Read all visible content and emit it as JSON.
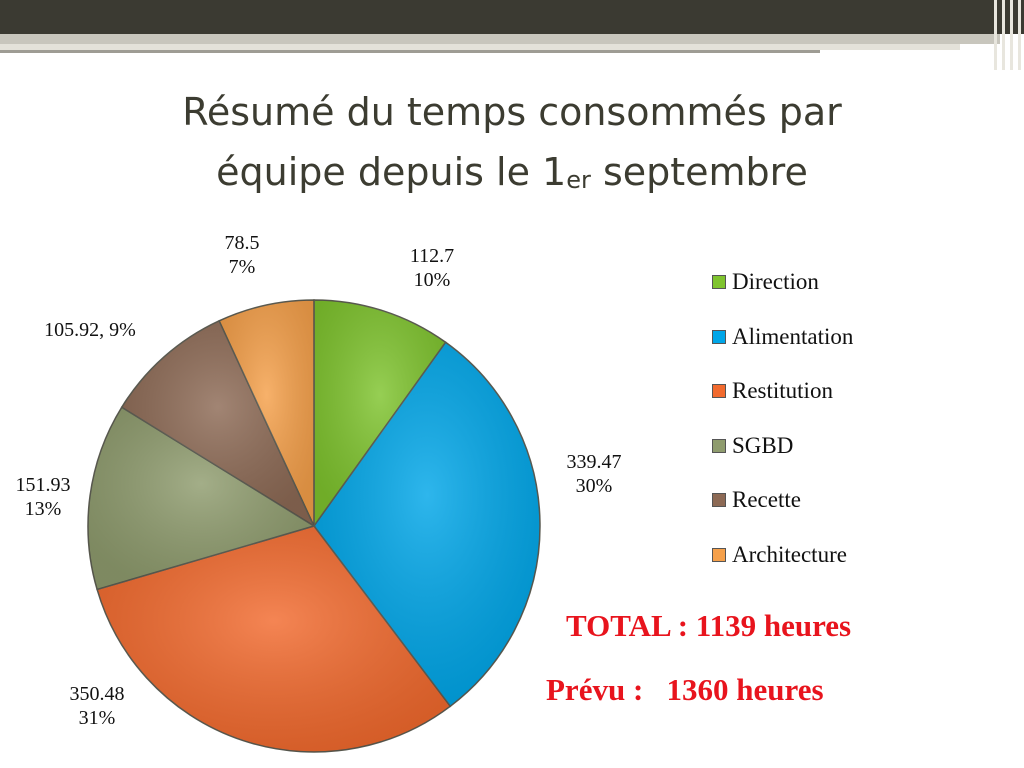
{
  "slide": {
    "title_line1": "Résumé du temps consommés par",
    "title_line2_pre": "équipe depuis le 1",
    "title_line2_sup": "er",
    "title_line2_post": " septembre",
    "total_text": "TOTAL : 1139 heures",
    "prevu_text": "Prévu :   1360 heures"
  },
  "chart_data": {
    "type": "pie",
    "title": "",
    "legend_position": "right",
    "slices": [
      {
        "name": "Direction",
        "value": 112.7,
        "percent": "10%",
        "label_lines": [
          "112.7",
          "10%"
        ],
        "color": "#7fc42e"
      },
      {
        "name": "Alimentation",
        "value": 339.47,
        "percent": "30%",
        "label_lines": [
          "339.47",
          "30%"
        ],
        "color": "#00a6e8"
      },
      {
        "name": "Restitution",
        "value": 350.48,
        "percent": "31%",
        "label_lines": [
          "350.48",
          "31%"
        ],
        "color": "#f26a2e"
      },
      {
        "name": "SGBD",
        "value": 151.93,
        "percent": "13%",
        "label_lines": [
          "151.93",
          "13%"
        ],
        "color": "#8f9c6e"
      },
      {
        "name": "Recette",
        "value": 105.92,
        "percent": "9%",
        "label_lines": [
          "105.92, 9%"
        ],
        "color": "#8d6a55"
      },
      {
        "name": "Architecture",
        "value": 78.5,
        "percent": "7%",
        "label_lines": [
          "78.5",
          "7%"
        ],
        "color": "#f5a04a"
      }
    ]
  }
}
